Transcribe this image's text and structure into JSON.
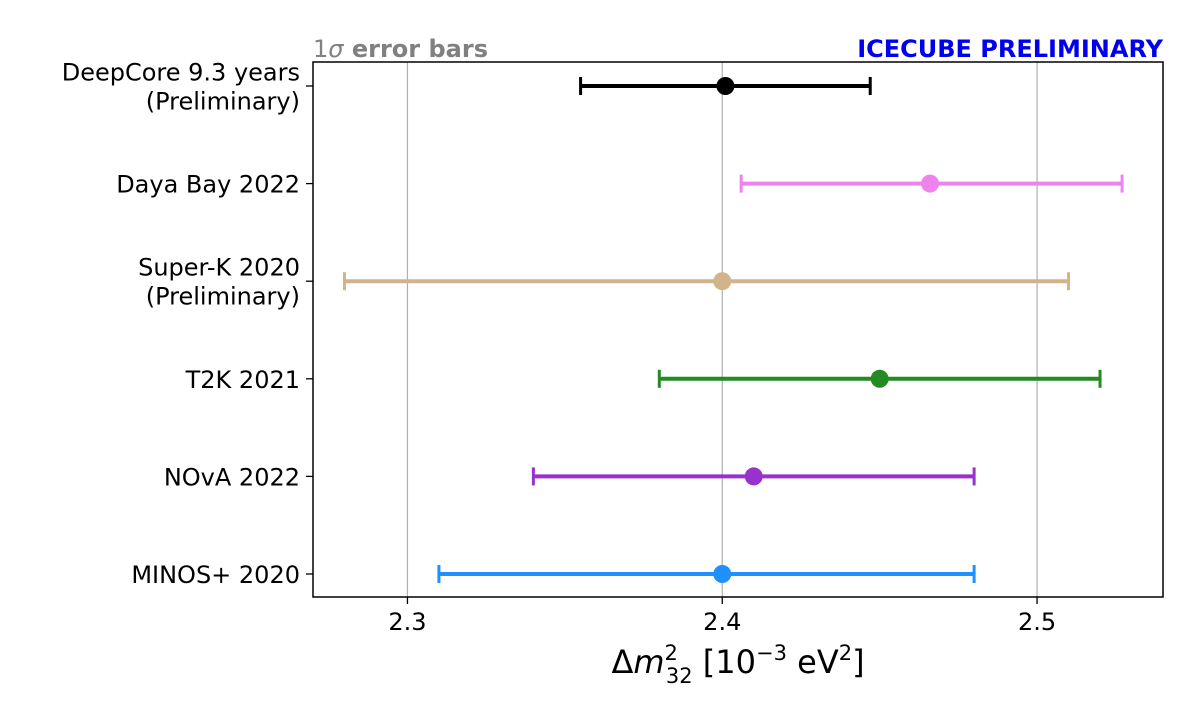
{
  "chart_data": {
    "type": "scatter",
    "title": "",
    "header_left": {
      "prefix": "1",
      "sigma": "σ",
      "text": " error bars",
      "color": "#808080"
    },
    "header_right": {
      "text": "ICECUBE PRELIMINARY",
      "color": "#0000ee"
    },
    "xlabel": {
      "delta": "Δ",
      "m": "m",
      "sup": "2",
      "sub": "32",
      "unit_open": " [10",
      "exp": "−3",
      "unit_mid": " eV",
      "unit_sup": "2",
      "unit_close": "]"
    },
    "ylabel": "",
    "xlim": [
      2.27,
      2.54
    ],
    "xticks": [
      {
        "value": 2.3,
        "label": "2.3"
      },
      {
        "value": 2.4,
        "label": "2.4"
      },
      {
        "value": 2.5,
        "label": "2.5"
      }
    ],
    "grid": "vertical",
    "series": [
      {
        "lines": [
          "DeepCore 9.3 years",
          "(Preliminary)"
        ],
        "value": 2.401,
        "low": 2.355,
        "high": 2.447,
        "color": "#000000"
      },
      {
        "lines": [
          "Daya Bay 2022"
        ],
        "value": 2.466,
        "low": 2.406,
        "high": 2.527,
        "color": "#ee82ee"
      },
      {
        "lines": [
          "Super-K 2020",
          "(Preliminary)"
        ],
        "value": 2.4,
        "low": 2.28,
        "high": 2.51,
        "color": "#d2b48c"
      },
      {
        "lines": [
          "T2K 2021"
        ],
        "value": 2.45,
        "low": 2.38,
        "high": 2.52,
        "color": "#228b22"
      },
      {
        "lines": [
          "NOvA 2022"
        ],
        "value": 2.41,
        "low": 2.34,
        "high": 2.48,
        "color": "#9932cc"
      },
      {
        "lines": [
          "MINOS+ 2020"
        ],
        "value": 2.4,
        "low": 2.31,
        "high": 2.48,
        "color": "#1e90ff"
      }
    ]
  }
}
